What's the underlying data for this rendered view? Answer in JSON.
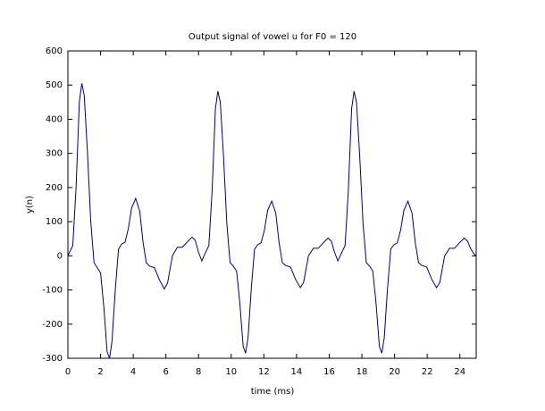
{
  "chart_data": {
    "type": "line",
    "title": "Output signal of vowel u for F0 = 120",
    "x_label": "time (ms)",
    "y_label": "y(n)",
    "x": [
      0,
      0.3,
      0.5,
      0.7,
      0.85,
      1.0,
      1.2,
      1.4,
      1.6,
      1.8,
      2.0,
      2.2,
      2.4,
      2.55,
      2.7,
      2.9,
      3.1,
      3.3,
      3.5,
      3.7,
      3.9,
      4.15,
      4.4,
      4.6,
      4.8,
      5.0,
      5.3,
      5.6,
      5.9,
      6.1,
      6.4,
      6.7,
      7.0,
      7.3,
      7.6,
      7.8,
      8.0,
      8.2,
      8.33,
      8.63,
      8.83,
      9.03,
      9.18,
      9.33,
      9.53,
      9.73,
      9.93,
      10.13,
      10.33,
      10.53,
      10.73,
      10.88,
      11.03,
      11.23,
      11.43,
      11.63,
      11.83,
      12.03,
      12.23,
      12.48,
      12.73,
      12.93,
      13.13,
      13.33,
      13.63,
      13.93,
      14.23,
      14.43,
      14.73,
      15.03,
      15.33,
      15.63,
      15.93,
      16.13,
      16.33,
      16.53,
      16.67,
      16.97,
      17.17,
      17.37,
      17.52,
      17.67,
      17.87,
      18.07,
      18.27,
      18.47,
      18.67,
      18.87,
      19.07,
      19.22,
      19.37,
      19.57,
      19.77,
      19.97,
      20.17,
      20.37,
      20.57,
      20.82,
      21.07,
      21.27,
      21.47,
      21.67,
      21.97,
      22.27,
      22.57,
      22.77,
      23.07,
      23.37,
      23.67,
      23.97,
      24.27,
      24.47,
      24.67,
      24.87,
      25
    ],
    "series": [
      {
        "name": "y(n)",
        "color": "#000080",
        "values": [
          0,
          30,
          200,
          450,
          505,
          470,
          300,
          100,
          -20,
          -35,
          -50,
          -150,
          -280,
          -300,
          -250,
          -100,
          20,
          35,
          40,
          80,
          140,
          168,
          130,
          40,
          -20,
          -30,
          -35,
          -70,
          -97,
          -80,
          0,
          25,
          25,
          40,
          55,
          45,
          10,
          -15,
          0,
          30,
          190,
          430,
          482,
          450,
          290,
          95,
          -20,
          -30,
          -45,
          -140,
          -265,
          -285,
          -240,
          -95,
          20,
          33,
          38,
          75,
          133,
          160,
          125,
          38,
          -20,
          -28,
          -33,
          -68,
          -93,
          -78,
          0,
          22,
          22,
          38,
          52,
          43,
          10,
          -15,
          0,
          30,
          190,
          430,
          482,
          450,
          290,
          95,
          -20,
          -30,
          -45,
          -140,
          -265,
          -285,
          -240,
          -95,
          20,
          33,
          38,
          75,
          133,
          160,
          125,
          38,
          -20,
          -28,
          -33,
          -68,
          -93,
          -78,
          0,
          22,
          22,
          38,
          52,
          43,
          20,
          5,
          0
        ]
      }
    ],
    "xlim": [
      0,
      25
    ],
    "xticks": [
      0,
      2,
      4,
      6,
      8,
      10,
      12,
      14,
      16,
      18,
      20,
      22,
      24
    ],
    "ylim": [
      -300,
      600
    ],
    "yticks": [
      -300,
      -200,
      -100,
      0,
      100,
      200,
      300,
      400,
      500,
      600
    ],
    "grid": false
  }
}
